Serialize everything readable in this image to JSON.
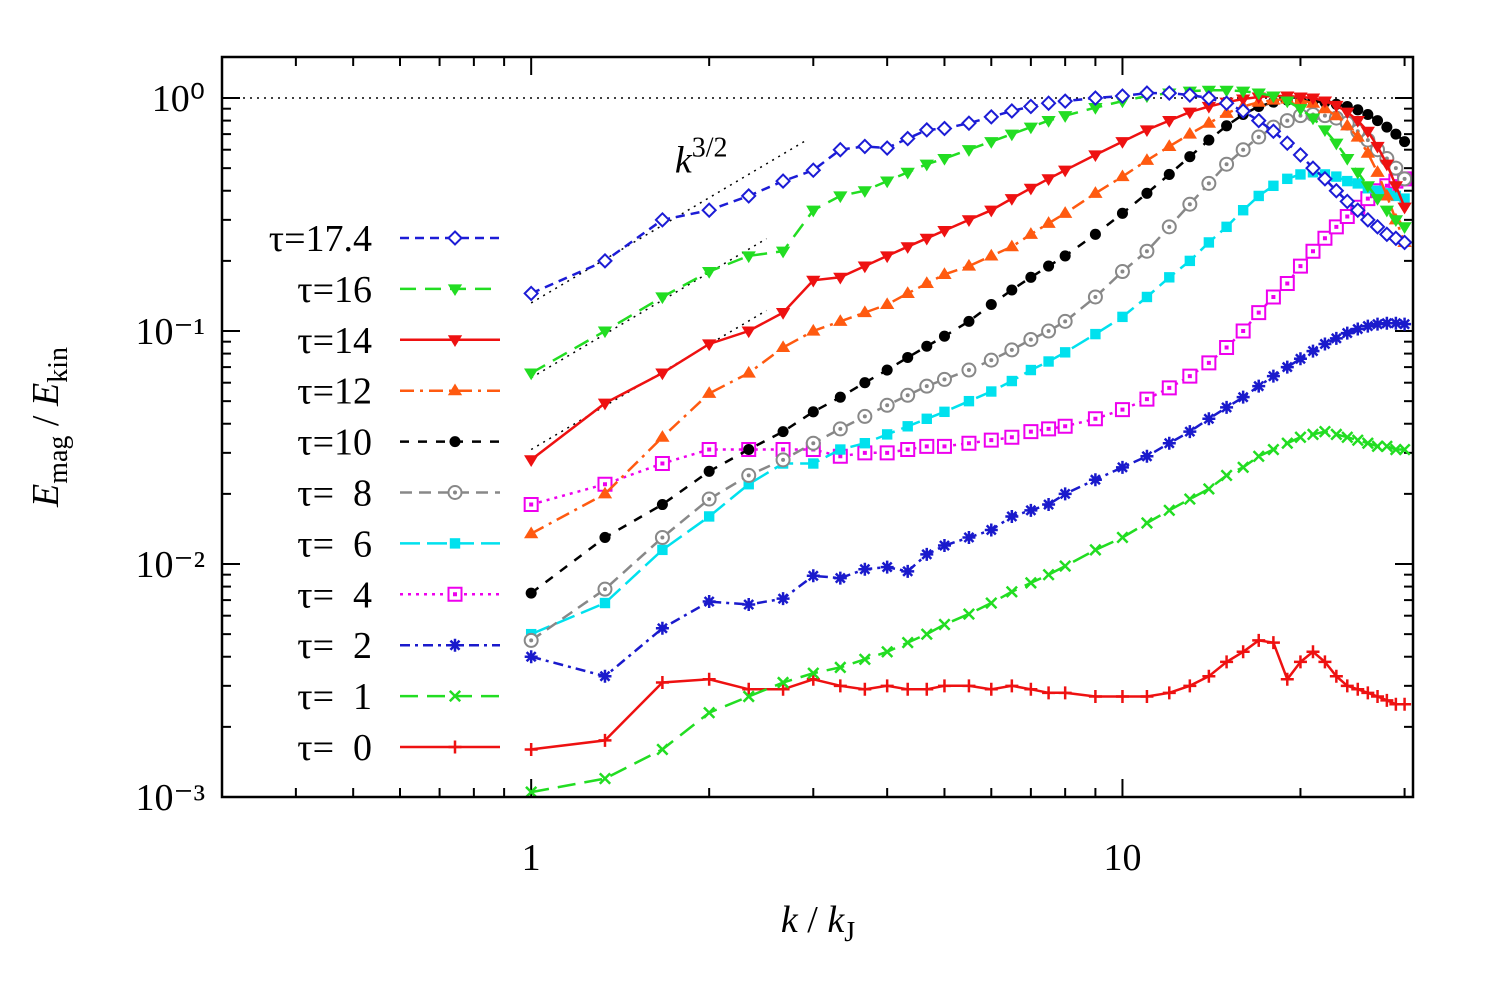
{
  "chart_data": {
    "type": "line",
    "xlog": true,
    "ylog": true,
    "xlim": [
      0.3,
      31
    ],
    "ylim": [
      0.001,
      1.5
    ],
    "xticks": [
      1,
      10
    ],
    "xminorticks": [
      0.4,
      0.5,
      0.6,
      0.7,
      0.8,
      0.9,
      2,
      3,
      4,
      5,
      6,
      7,
      8,
      9,
      20,
      30
    ],
    "yticks": [
      {
        "value": 0.001,
        "label": "10⁻³"
      },
      {
        "value": 0.01,
        "label": "10⁻²"
      },
      {
        "value": 0.1,
        "label": "10⁻¹"
      },
      {
        "value": 1,
        "label": "10⁰"
      }
    ],
    "yminorticks": [
      0.002,
      0.003,
      0.004,
      0.005,
      0.006,
      0.007,
      0.008,
      0.009,
      0.02,
      0.03,
      0.04,
      0.05,
      0.06,
      0.07,
      0.08,
      0.09,
      0.2,
      0.3,
      0.4,
      0.5,
      0.6,
      0.7,
      0.8,
      0.9
    ],
    "xlabel": [
      "k",
      " / ",
      "k",
      "J"
    ],
    "ylabel": [
      "E",
      "mag",
      " / ",
      "E",
      "kin"
    ],
    "annotation": {
      "text": [
        "k",
        "3/2"
      ],
      "x": 1.75,
      "y": 0.48
    },
    "hline": 1,
    "guides": [
      {
        "x": [
          1,
          2.9
        ],
        "y": [
          0.132,
          0.652
        ]
      },
      {
        "x": [
          1,
          2.5
        ],
        "y": [
          0.063,
          0.249
        ]
      },
      {
        "x": [
          1,
          2.5
        ],
        "y": [
          0.031,
          0.1225
        ]
      }
    ],
    "x": [
      1,
      1.333,
      1.667,
      2,
      2.333,
      2.667,
      3,
      3.333,
      3.667,
      4,
      4.333,
      4.667,
      5,
      5.5,
      6,
      6.5,
      7,
      7.5,
      8,
      9,
      10,
      11,
      12,
      13,
      14,
      15,
      16,
      17,
      18,
      19,
      20,
      21,
      22,
      23,
      24,
      25,
      26,
      27,
      28,
      29,
      30
    ],
    "series": [
      {
        "name": "τ=17.4",
        "color": "#1c1cd6",
        "dash": "9,6",
        "marker": "diamond-open",
        "values": [
          0.145,
          0.2,
          0.3,
          0.33,
          0.38,
          0.44,
          0.49,
          0.6,
          0.62,
          0.61,
          0.67,
          0.73,
          0.74,
          0.78,
          0.83,
          0.88,
          0.92,
          0.95,
          0.97,
          1.0,
          1.02,
          1.05,
          1.05,
          1.03,
          1.0,
          0.95,
          0.88,
          0.8,
          0.72,
          0.64,
          0.57,
          0.5,
          0.45,
          0.4,
          0.36,
          0.33,
          0.3,
          0.28,
          0.26,
          0.25,
          0.24
        ]
      },
      {
        "name": "τ=16",
        "color": "#22dd22",
        "dash": "16,9",
        "marker": "tri-down",
        "values": [
          0.066,
          0.1,
          0.14,
          0.18,
          0.21,
          0.22,
          0.33,
          0.38,
          0.4,
          0.44,
          0.48,
          0.52,
          0.55,
          0.6,
          0.65,
          0.7,
          0.75,
          0.8,
          0.84,
          0.91,
          0.97,
          1.02,
          1.05,
          1.07,
          1.08,
          1.08,
          1.07,
          1.05,
          1.02,
          0.97,
          0.9,
          0.82,
          0.73,
          0.64,
          0.55,
          0.48,
          0.42,
          0.37,
          0.33,
          0.3,
          0.28
        ]
      },
      {
        "name": "τ=14",
        "color": "#ee1111",
        "dash": "none",
        "marker": "tri-down",
        "values": [
          0.028,
          0.049,
          0.066,
          0.088,
          0.1,
          0.12,
          0.165,
          0.17,
          0.19,
          0.21,
          0.23,
          0.25,
          0.27,
          0.3,
          0.33,
          0.37,
          0.41,
          0.45,
          0.49,
          0.57,
          0.65,
          0.73,
          0.8,
          0.87,
          0.92,
          0.96,
          0.99,
          1.01,
          1.02,
          1.02,
          1.01,
          1.0,
          0.97,
          0.93,
          0.87,
          0.8,
          0.72,
          0.62,
          0.52,
          0.42,
          0.34
        ]
      },
      {
        "name": "τ=12",
        "color": "#ff5a10",
        "dash": "14,6,3,6",
        "marker": "tri-up",
        "values": [
          0.0135,
          0.02,
          0.035,
          0.054,
          0.066,
          0.085,
          0.1,
          0.11,
          0.12,
          0.13,
          0.145,
          0.16,
          0.175,
          0.19,
          0.21,
          0.23,
          0.26,
          0.29,
          0.32,
          0.39,
          0.46,
          0.54,
          0.62,
          0.7,
          0.78,
          0.86,
          0.92,
          0.96,
          0.98,
          0.99,
          0.98,
          0.95,
          0.9,
          0.84,
          0.76,
          0.68,
          0.58,
          0.48,
          0.38,
          0.3,
          0.24
        ]
      },
      {
        "name": "τ=10",
        "color": "#000000",
        "dash": "9,9",
        "marker": "circle",
        "values": [
          0.0075,
          0.013,
          0.018,
          0.025,
          0.031,
          0.037,
          0.045,
          0.052,
          0.06,
          0.068,
          0.077,
          0.086,
          0.095,
          0.11,
          0.13,
          0.15,
          0.17,
          0.19,
          0.21,
          0.26,
          0.32,
          0.39,
          0.47,
          0.56,
          0.66,
          0.76,
          0.85,
          0.92,
          0.96,
          0.98,
          0.98,
          0.97,
          0.96,
          0.94,
          0.92,
          0.89,
          0.85,
          0.8,
          0.75,
          0.7,
          0.65
        ]
      },
      {
        "name": "τ=  8",
        "color": "#888888",
        "dash": "12,7",
        "marker": "circle-open",
        "values": [
          0.0047,
          0.0078,
          0.013,
          0.019,
          0.024,
          0.028,
          0.033,
          0.038,
          0.043,
          0.048,
          0.053,
          0.058,
          0.062,
          0.068,
          0.075,
          0.083,
          0.092,
          0.1,
          0.11,
          0.14,
          0.18,
          0.22,
          0.28,
          0.35,
          0.43,
          0.52,
          0.6,
          0.68,
          0.75,
          0.8,
          0.84,
          0.85,
          0.84,
          0.82,
          0.78,
          0.72,
          0.66,
          0.6,
          0.55,
          0.5,
          0.45
        ]
      },
      {
        "name": "τ=  6",
        "color": "#00e1ee",
        "dash": "20,7",
        "marker": "square",
        "values": [
          0.005,
          0.0068,
          0.0115,
          0.016,
          0.022,
          0.027,
          0.027,
          0.031,
          0.033,
          0.036,
          0.039,
          0.042,
          0.045,
          0.05,
          0.055,
          0.061,
          0.068,
          0.074,
          0.081,
          0.097,
          0.115,
          0.14,
          0.17,
          0.2,
          0.24,
          0.28,
          0.33,
          0.38,
          0.42,
          0.45,
          0.47,
          0.48,
          0.47,
          0.46,
          0.44,
          0.43,
          0.41,
          0.4,
          0.39,
          0.38,
          0.37
        ]
      },
      {
        "name": "τ=  4",
        "color": "#ee00ee",
        "dash": "3,5",
        "marker": "square-open",
        "values": [
          0.018,
          0.022,
          0.027,
          0.031,
          0.031,
          0.031,
          0.031,
          0.029,
          0.03,
          0.03,
          0.031,
          0.032,
          0.032,
          0.033,
          0.034,
          0.035,
          0.037,
          0.038,
          0.039,
          0.042,
          0.046,
          0.051,
          0.057,
          0.064,
          0.073,
          0.085,
          0.1,
          0.12,
          0.14,
          0.16,
          0.19,
          0.22,
          0.25,
          0.28,
          0.31,
          0.34,
          0.37,
          0.4,
          0.42,
          0.44,
          0.45
        ]
      },
      {
        "name": "τ=  2",
        "color": "#1a1acc",
        "dash": "10,5,3,5",
        "marker": "star",
        "values": [
          0.004,
          0.0033,
          0.0053,
          0.0069,
          0.0067,
          0.0071,
          0.0089,
          0.0087,
          0.0095,
          0.0097,
          0.0093,
          0.011,
          0.012,
          0.013,
          0.014,
          0.016,
          0.017,
          0.018,
          0.02,
          0.023,
          0.026,
          0.029,
          0.033,
          0.037,
          0.042,
          0.047,
          0.052,
          0.058,
          0.064,
          0.07,
          0.076,
          0.082,
          0.088,
          0.093,
          0.098,
          0.102,
          0.105,
          0.107,
          0.108,
          0.108,
          0.107
        ]
      },
      {
        "name": "τ=  1",
        "color": "#22dd22",
        "dash": "18,9",
        "marker": "cross",
        "values": [
          0.00105,
          0.0012,
          0.0016,
          0.0023,
          0.0027,
          0.0031,
          0.0034,
          0.0036,
          0.0039,
          0.0042,
          0.0046,
          0.005,
          0.0055,
          0.0061,
          0.0068,
          0.0076,
          0.0083,
          0.009,
          0.0098,
          0.0115,
          0.013,
          0.015,
          0.017,
          0.019,
          0.021,
          0.024,
          0.026,
          0.029,
          0.031,
          0.033,
          0.035,
          0.036,
          0.037,
          0.036,
          0.035,
          0.034,
          0.033,
          0.032,
          0.032,
          0.031,
          0.031
        ]
      },
      {
        "name": "τ=  0",
        "color": "#ee1111",
        "dash": "none",
        "marker": "plus",
        "values": [
          0.0016,
          0.00175,
          0.0031,
          0.0032,
          0.0029,
          0.0029,
          0.0032,
          0.003,
          0.0029,
          0.003,
          0.0029,
          0.0029,
          0.003,
          0.003,
          0.0029,
          0.003,
          0.0029,
          0.0028,
          0.0028,
          0.0027,
          0.0027,
          0.0027,
          0.0028,
          0.003,
          0.0033,
          0.0038,
          0.0042,
          0.0047,
          0.0046,
          0.0032,
          0.0038,
          0.0042,
          0.0038,
          0.0033,
          0.003,
          0.0029,
          0.0028,
          0.0027,
          0.0026,
          0.0025,
          0.0025
        ]
      }
    ]
  }
}
